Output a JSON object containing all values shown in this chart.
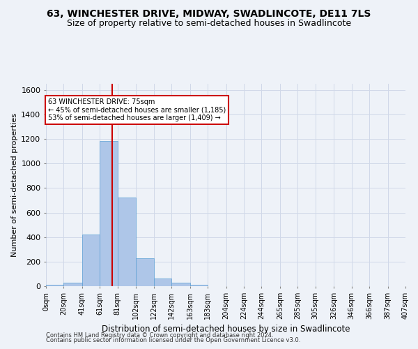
{
  "title": "63, WINCHESTER DRIVE, MIDWAY, SWADLINCOTE, DE11 7LS",
  "subtitle": "Size of property relative to semi-detached houses in Swadlincote",
  "xlabel": "Distribution of semi-detached houses by size in Swadlincote",
  "ylabel": "Number of semi-detached properties",
  "footnote1": "Contains HM Land Registry data © Crown copyright and database right 2024.",
  "footnote2": "Contains public sector information licensed under the Open Government Licence v3.0.",
  "annotation_title": "63 WINCHESTER DRIVE: 75sqm",
  "annotation_line1": "← 45% of semi-detached houses are smaller (1,185)",
  "annotation_line2": "53% of semi-detached houses are larger (1,409) →",
  "property_size": 75,
  "bin_edges": [
    0,
    20,
    41,
    61,
    81,
    102,
    122,
    142,
    163,
    183,
    204,
    224,
    244,
    265,
    285,
    305,
    326,
    346,
    366,
    387,
    407
  ],
  "bar_heights": [
    10,
    30,
    420,
    1185,
    720,
    230,
    65,
    30,
    10,
    0,
    0,
    0,
    0,
    0,
    0,
    0,
    0,
    0,
    0,
    0
  ],
  "bar_color": "#aec6e8",
  "bar_edge_color": "#5a9fd4",
  "vline_color": "#cc0000",
  "vline_x": 75,
  "annotation_box_color": "#cc0000",
  "annotation_fill": "#ffffff",
  "ylim": [
    0,
    1650
  ],
  "yticks": [
    0,
    200,
    400,
    600,
    800,
    1000,
    1200,
    1400,
    1600
  ],
  "grid_color": "#d0d8e8",
  "bg_color": "#eef2f8",
  "title_fontsize": 10,
  "subtitle_fontsize": 9,
  "footnote_fontsize": 6
}
